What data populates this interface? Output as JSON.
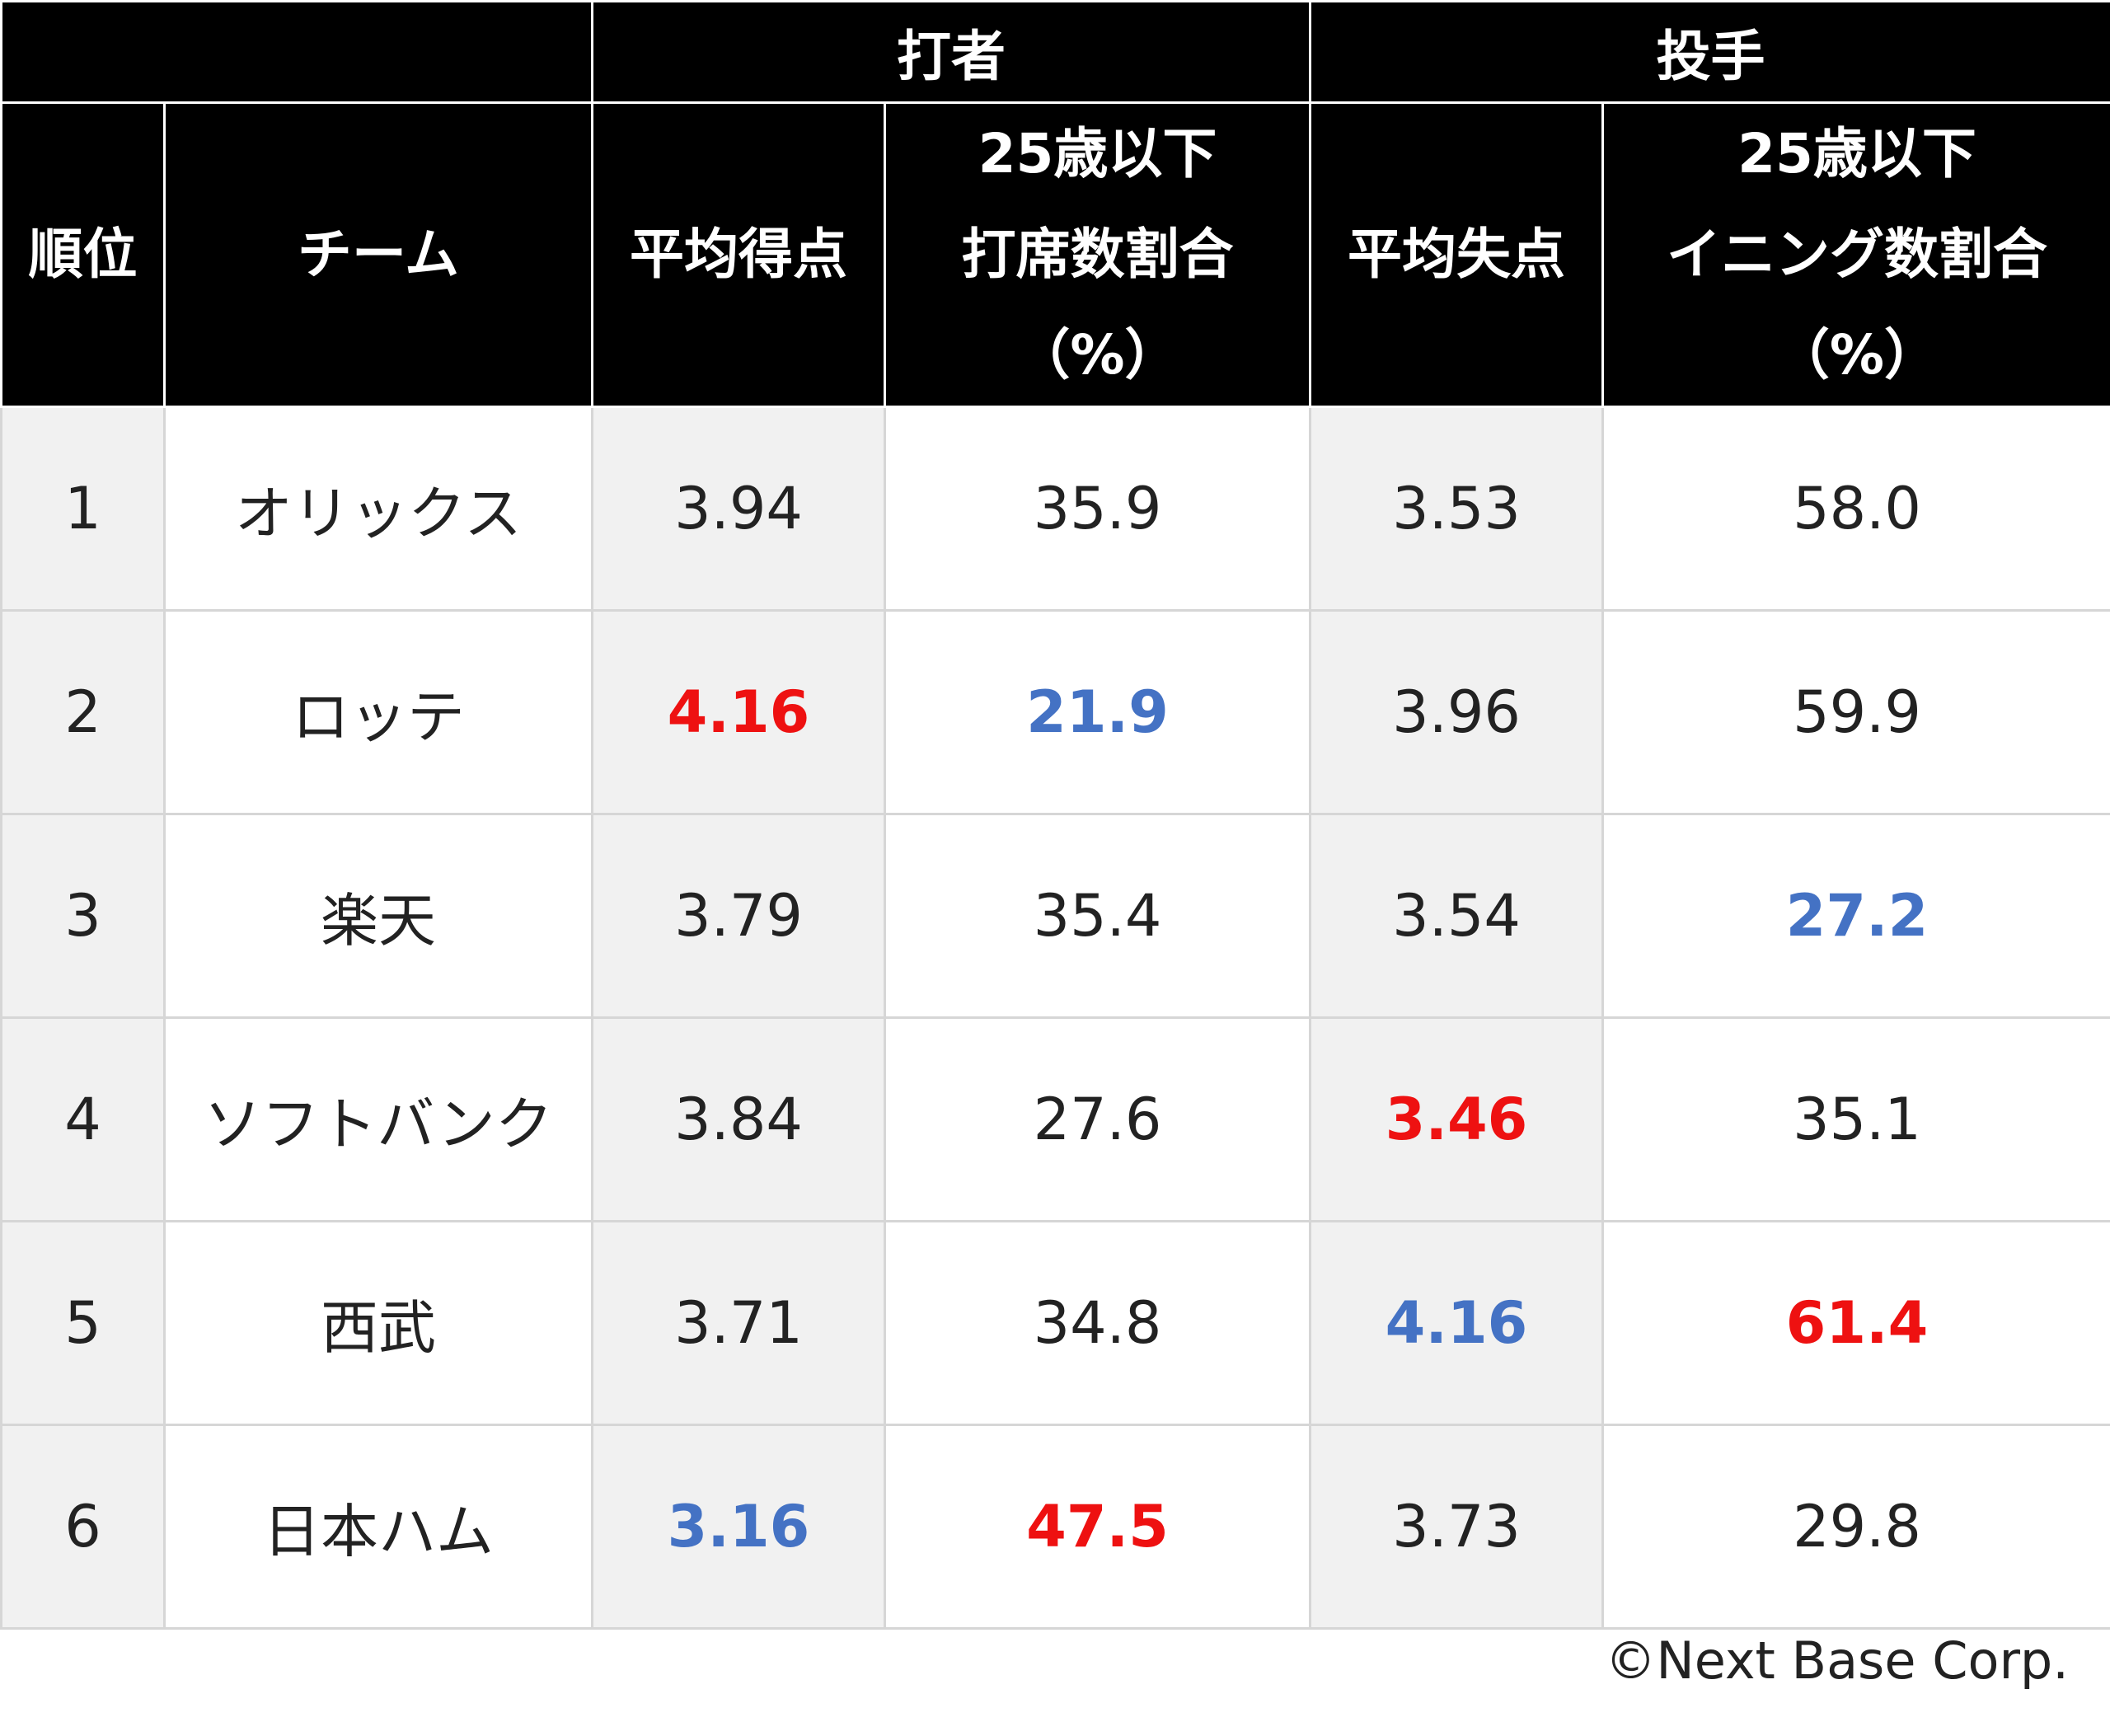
{
  "header": {
    "group_batter": "打者",
    "group_pitcher": "投手",
    "col_rank": "順位",
    "col_team": "チーム",
    "col_avg_runs": "平均得点",
    "col_batter_u25": [
      "25歳以下",
      "打席数割合",
      "（%）"
    ],
    "col_avg_runs_allowed": "平均失点",
    "col_pitcher_u25": [
      "25歳以下",
      "イニング数割合",
      "（%）"
    ]
  },
  "rows": [
    {
      "rank": "1",
      "team": "オリックス",
      "avg_runs": "3.94",
      "batter_u25": "35.9",
      "avg_allowed": "3.53",
      "pitcher_u25": "58.0"
    },
    {
      "rank": "2",
      "team": "ロッテ",
      "avg_runs": "4.16",
      "batter_u25": "21.9",
      "avg_allowed": "3.96",
      "pitcher_u25": "59.9"
    },
    {
      "rank": "3",
      "team": "楽天",
      "avg_runs": "3.79",
      "batter_u25": "35.4",
      "avg_allowed": "3.54",
      "pitcher_u25": "27.2"
    },
    {
      "rank": "4",
      "team": "ソフトバンク",
      "avg_runs": "3.84",
      "batter_u25": "27.6",
      "avg_allowed": "3.46",
      "pitcher_u25": "35.1"
    },
    {
      "rank": "5",
      "team": "西武",
      "avg_runs": "3.71",
      "batter_u25": "34.8",
      "avg_allowed": "4.16",
      "pitcher_u25": "61.4"
    },
    {
      "rank": "6",
      "team": "日本ハム",
      "avg_runs": "3.16",
      "batter_u25": "47.5",
      "avg_allowed": "3.73",
      "pitcher_u25": "29.8"
    }
  ],
  "colors": {
    "highlight_red": "#ee1111",
    "highlight_blue": "#4472c4",
    "header_bg": "#000000",
    "shade_bg": "#f1f1f1"
  },
  "footer": {
    "copyright": "©Next Base Corp."
  }
}
